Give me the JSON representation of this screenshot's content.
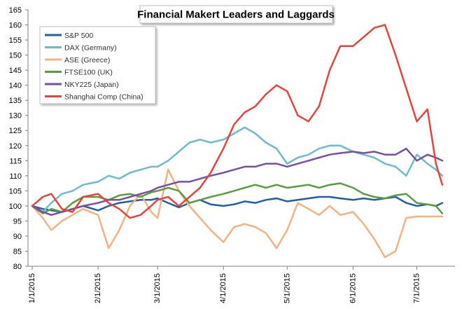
{
  "chart_data": {
    "type": "line",
    "title": "Financial Makert Leaders and Laggards",
    "xlabel": "",
    "ylabel": "",
    "ylim": [
      80,
      165
    ],
    "yticks": [
      80,
      85,
      90,
      95,
      100,
      105,
      110,
      115,
      120,
      125,
      130,
      135,
      140,
      145,
      150,
      155,
      160,
      165
    ],
    "xlim": [
      "2015-01-01",
      "2015-07-15"
    ],
    "xticks": [
      "2015-01-01",
      "2015-02-01",
      "2015-03-01",
      "2015-04-01",
      "2015-05-01",
      "2015-06-01",
      "2015-07-01"
    ],
    "xtick_labels": [
      "1/1/2015",
      "2/1/2015",
      "3/1/2015",
      "4/1/2015",
      "5/1/2015",
      "6/1/2015",
      "7/1/2015"
    ],
    "grid": false,
    "legend_position": "top-left",
    "series": [
      {
        "name": "S&P 500",
        "color": "#1f5fa8",
        "points": [
          [
            "2015-01-01",
            100
          ],
          [
            "2015-01-06",
            99
          ],
          [
            "2015-01-10",
            98.5
          ],
          [
            "2015-01-15",
            98
          ],
          [
            "2015-01-20",
            99
          ],
          [
            "2015-01-25",
            100
          ],
          [
            "2015-02-01",
            98.5
          ],
          [
            "2015-02-06",
            100
          ],
          [
            "2015-02-11",
            101
          ],
          [
            "2015-02-16",
            101.5
          ],
          [
            "2015-02-21",
            102
          ],
          [
            "2015-02-26",
            102
          ],
          [
            "2015-03-01",
            102.5
          ],
          [
            "2015-03-06",
            101
          ],
          [
            "2015-03-11",
            99.5
          ],
          [
            "2015-03-16",
            101
          ],
          [
            "2015-03-21",
            102
          ],
          [
            "2015-03-26",
            100.5
          ],
          [
            "2015-04-01",
            100
          ],
          [
            "2015-04-06",
            100.5
          ],
          [
            "2015-04-11",
            101.5
          ],
          [
            "2015-04-16",
            101
          ],
          [
            "2015-04-21",
            102
          ],
          [
            "2015-04-26",
            102.5
          ],
          [
            "2015-05-01",
            101.5
          ],
          [
            "2015-05-06",
            102
          ],
          [
            "2015-05-11",
            102.5
          ],
          [
            "2015-05-16",
            103
          ],
          [
            "2015-05-21",
            103
          ],
          [
            "2015-05-26",
            102.5
          ],
          [
            "2015-06-01",
            102
          ],
          [
            "2015-06-06",
            102.5
          ],
          [
            "2015-06-11",
            102
          ],
          [
            "2015-06-16",
            102.5
          ],
          [
            "2015-06-21",
            103
          ],
          [
            "2015-06-26",
            101
          ],
          [
            "2015-07-01",
            100
          ],
          [
            "2015-07-06",
            100.5
          ],
          [
            "2015-07-10",
            100
          ],
          [
            "2015-07-13",
            101
          ]
        ]
      },
      {
        "name": "DAX (Germany)",
        "color": "#6bbcd0",
        "points": [
          [
            "2015-01-01",
            100
          ],
          [
            "2015-01-06",
            98
          ],
          [
            "2015-01-10",
            101
          ],
          [
            "2015-01-15",
            104
          ],
          [
            "2015-01-20",
            105
          ],
          [
            "2015-01-25",
            107
          ],
          [
            "2015-02-01",
            108
          ],
          [
            "2015-02-06",
            110
          ],
          [
            "2015-02-11",
            109
          ],
          [
            "2015-02-16",
            111
          ],
          [
            "2015-02-21",
            112
          ],
          [
            "2015-02-26",
            113
          ],
          [
            "2015-03-01",
            113
          ],
          [
            "2015-03-06",
            115
          ],
          [
            "2015-03-11",
            118
          ],
          [
            "2015-03-16",
            121
          ],
          [
            "2015-03-21",
            122
          ],
          [
            "2015-03-26",
            121
          ],
          [
            "2015-04-01",
            122
          ],
          [
            "2015-04-06",
            124
          ],
          [
            "2015-04-11",
            126
          ],
          [
            "2015-04-16",
            124
          ],
          [
            "2015-04-21",
            121
          ],
          [
            "2015-04-26",
            119
          ],
          [
            "2015-05-01",
            114
          ],
          [
            "2015-05-06",
            116
          ],
          [
            "2015-05-11",
            117
          ],
          [
            "2015-05-16",
            119
          ],
          [
            "2015-05-21",
            120
          ],
          [
            "2015-05-26",
            120
          ],
          [
            "2015-06-01",
            118
          ],
          [
            "2015-06-06",
            117
          ],
          [
            "2015-06-11",
            116
          ],
          [
            "2015-06-16",
            114
          ],
          [
            "2015-06-21",
            113
          ],
          [
            "2015-06-26",
            110
          ],
          [
            "2015-07-01",
            117
          ],
          [
            "2015-07-06",
            114
          ],
          [
            "2015-07-10",
            112
          ],
          [
            "2015-07-13",
            110
          ]
        ]
      },
      {
        "name": "ASE (Greece)",
        "color": "#f5b27e",
        "points": [
          [
            "2015-01-01",
            100
          ],
          [
            "2015-01-06",
            96
          ],
          [
            "2015-01-10",
            92
          ],
          [
            "2015-01-15",
            95
          ],
          [
            "2015-01-20",
            97
          ],
          [
            "2015-01-25",
            99
          ],
          [
            "2015-02-01",
            97
          ],
          [
            "2015-02-06",
            86
          ],
          [
            "2015-02-11",
            92
          ],
          [
            "2015-02-16",
            100
          ],
          [
            "2015-02-21",
            104
          ],
          [
            "2015-02-26",
            98
          ],
          [
            "2015-03-01",
            96
          ],
          [
            "2015-03-06",
            112
          ],
          [
            "2015-03-11",
            105
          ],
          [
            "2015-03-16",
            100
          ],
          [
            "2015-03-21",
            96
          ],
          [
            "2015-03-26",
            92
          ],
          [
            "2015-04-01",
            88
          ],
          [
            "2015-04-06",
            93
          ],
          [
            "2015-04-11",
            94
          ],
          [
            "2015-04-16",
            93
          ],
          [
            "2015-04-21",
            91
          ],
          [
            "2015-04-26",
            86
          ],
          [
            "2015-05-01",
            92
          ],
          [
            "2015-05-06",
            101
          ],
          [
            "2015-05-11",
            99
          ],
          [
            "2015-05-16",
            97
          ],
          [
            "2015-05-21",
            100
          ],
          [
            "2015-05-26",
            97
          ],
          [
            "2015-06-01",
            98
          ],
          [
            "2015-06-06",
            94
          ],
          [
            "2015-06-11",
            89
          ],
          [
            "2015-06-16",
            83
          ],
          [
            "2015-06-21",
            85
          ],
          [
            "2015-06-26",
            96
          ],
          [
            "2015-07-01",
            96.5
          ],
          [
            "2015-07-06",
            96.5
          ],
          [
            "2015-07-10",
            96.5
          ],
          [
            "2015-07-13",
            96.5
          ]
        ]
      },
      {
        "name": "FTSE100 (UK)",
        "color": "#5a9e3c",
        "points": [
          [
            "2015-01-01",
            100
          ],
          [
            "2015-01-06",
            97.5
          ],
          [
            "2015-01-10",
            99
          ],
          [
            "2015-01-15",
            98
          ],
          [
            "2015-01-20",
            101
          ],
          [
            "2015-01-25",
            103
          ],
          [
            "2015-02-01",
            103
          ],
          [
            "2015-02-06",
            102
          ],
          [
            "2015-02-11",
            103.5
          ],
          [
            "2015-02-16",
            104
          ],
          [
            "2015-02-21",
            103
          ],
          [
            "2015-02-26",
            104.5
          ],
          [
            "2015-03-01",
            105
          ],
          [
            "2015-03-06",
            106
          ],
          [
            "2015-03-11",
            105
          ],
          [
            "2015-03-16",
            101
          ],
          [
            "2015-03-21",
            102
          ],
          [
            "2015-03-26",
            103
          ],
          [
            "2015-04-01",
            104
          ],
          [
            "2015-04-06",
            105
          ],
          [
            "2015-04-11",
            106
          ],
          [
            "2015-04-16",
            107
          ],
          [
            "2015-04-21",
            106
          ],
          [
            "2015-04-26",
            107
          ],
          [
            "2015-05-01",
            106
          ],
          [
            "2015-05-06",
            106.5
          ],
          [
            "2015-05-11",
            107
          ],
          [
            "2015-05-16",
            106
          ],
          [
            "2015-05-21",
            107
          ],
          [
            "2015-05-26",
            107.5
          ],
          [
            "2015-06-01",
            106
          ],
          [
            "2015-06-06",
            104
          ],
          [
            "2015-06-11",
            103
          ],
          [
            "2015-06-16",
            102.5
          ],
          [
            "2015-06-21",
            103.5
          ],
          [
            "2015-06-26",
            104
          ],
          [
            "2015-07-01",
            101
          ],
          [
            "2015-07-06",
            100.5
          ],
          [
            "2015-07-10",
            100
          ],
          [
            "2015-07-13",
            97.5
          ]
        ]
      },
      {
        "name": "NKY225 (Japan)",
        "color": "#7a4fa3",
        "points": [
          [
            "2015-01-01",
            100
          ],
          [
            "2015-01-06",
            98
          ],
          [
            "2015-01-10",
            97
          ],
          [
            "2015-01-15",
            98
          ],
          [
            "2015-01-20",
            99
          ],
          [
            "2015-01-25",
            100
          ],
          [
            "2015-02-01",
            101
          ],
          [
            "2015-02-06",
            102
          ],
          [
            "2015-02-11",
            102
          ],
          [
            "2015-02-16",
            103
          ],
          [
            "2015-02-21",
            104
          ],
          [
            "2015-02-26",
            105
          ],
          [
            "2015-03-01",
            106
          ],
          [
            "2015-03-06",
            107
          ],
          [
            "2015-03-11",
            108
          ],
          [
            "2015-03-16",
            108
          ],
          [
            "2015-03-21",
            109
          ],
          [
            "2015-03-26",
            110
          ],
          [
            "2015-04-01",
            111
          ],
          [
            "2015-04-06",
            112
          ],
          [
            "2015-04-11",
            113
          ],
          [
            "2015-04-16",
            113
          ],
          [
            "2015-04-21",
            114
          ],
          [
            "2015-04-26",
            114
          ],
          [
            "2015-05-01",
            113
          ],
          [
            "2015-05-06",
            114
          ],
          [
            "2015-05-11",
            115
          ],
          [
            "2015-05-16",
            116
          ],
          [
            "2015-05-21",
            117
          ],
          [
            "2015-05-26",
            117.5
          ],
          [
            "2015-06-01",
            118
          ],
          [
            "2015-06-06",
            117.5
          ],
          [
            "2015-06-11",
            118
          ],
          [
            "2015-06-16",
            117
          ],
          [
            "2015-06-21",
            117
          ],
          [
            "2015-06-26",
            119
          ],
          [
            "2015-07-01",
            115
          ],
          [
            "2015-07-06",
            117
          ],
          [
            "2015-07-10",
            116
          ],
          [
            "2015-07-13",
            115
          ]
        ]
      },
      {
        "name": "Shanghai Comp (China)",
        "color": "#e8433a",
        "points": [
          [
            "2015-01-01",
            100
          ],
          [
            "2015-01-06",
            103
          ],
          [
            "2015-01-10",
            104
          ],
          [
            "2015-01-15",
            99
          ],
          [
            "2015-01-20",
            98
          ],
          [
            "2015-01-25",
            103
          ],
          [
            "2015-02-01",
            104
          ],
          [
            "2015-02-06",
            101
          ],
          [
            "2015-02-11",
            99
          ],
          [
            "2015-02-16",
            96
          ],
          [
            "2015-02-21",
            97
          ],
          [
            "2015-02-26",
            100
          ],
          [
            "2015-03-01",
            102
          ],
          [
            "2015-03-06",
            103
          ],
          [
            "2015-03-11",
            100
          ],
          [
            "2015-03-16",
            103
          ],
          [
            "2015-03-21",
            106
          ],
          [
            "2015-03-26",
            111
          ],
          [
            "2015-04-01",
            119
          ],
          [
            "2015-04-06",
            127
          ],
          [
            "2015-04-11",
            131
          ],
          [
            "2015-04-16",
            133
          ],
          [
            "2015-04-21",
            137
          ],
          [
            "2015-04-26",
            140
          ],
          [
            "2015-05-01",
            138
          ],
          [
            "2015-05-06",
            130
          ],
          [
            "2015-05-11",
            128
          ],
          [
            "2015-05-16",
            133
          ],
          [
            "2015-05-21",
            145
          ],
          [
            "2015-05-26",
            153
          ],
          [
            "2015-06-01",
            153
          ],
          [
            "2015-06-06",
            156
          ],
          [
            "2015-06-11",
            159
          ],
          [
            "2015-06-16",
            160
          ],
          [
            "2015-06-21",
            150
          ],
          [
            "2015-06-26",
            139
          ],
          [
            "2015-07-01",
            128
          ],
          [
            "2015-07-06",
            132
          ],
          [
            "2015-07-10",
            114
          ],
          [
            "2015-07-13",
            107
          ]
        ]
      }
    ]
  }
}
